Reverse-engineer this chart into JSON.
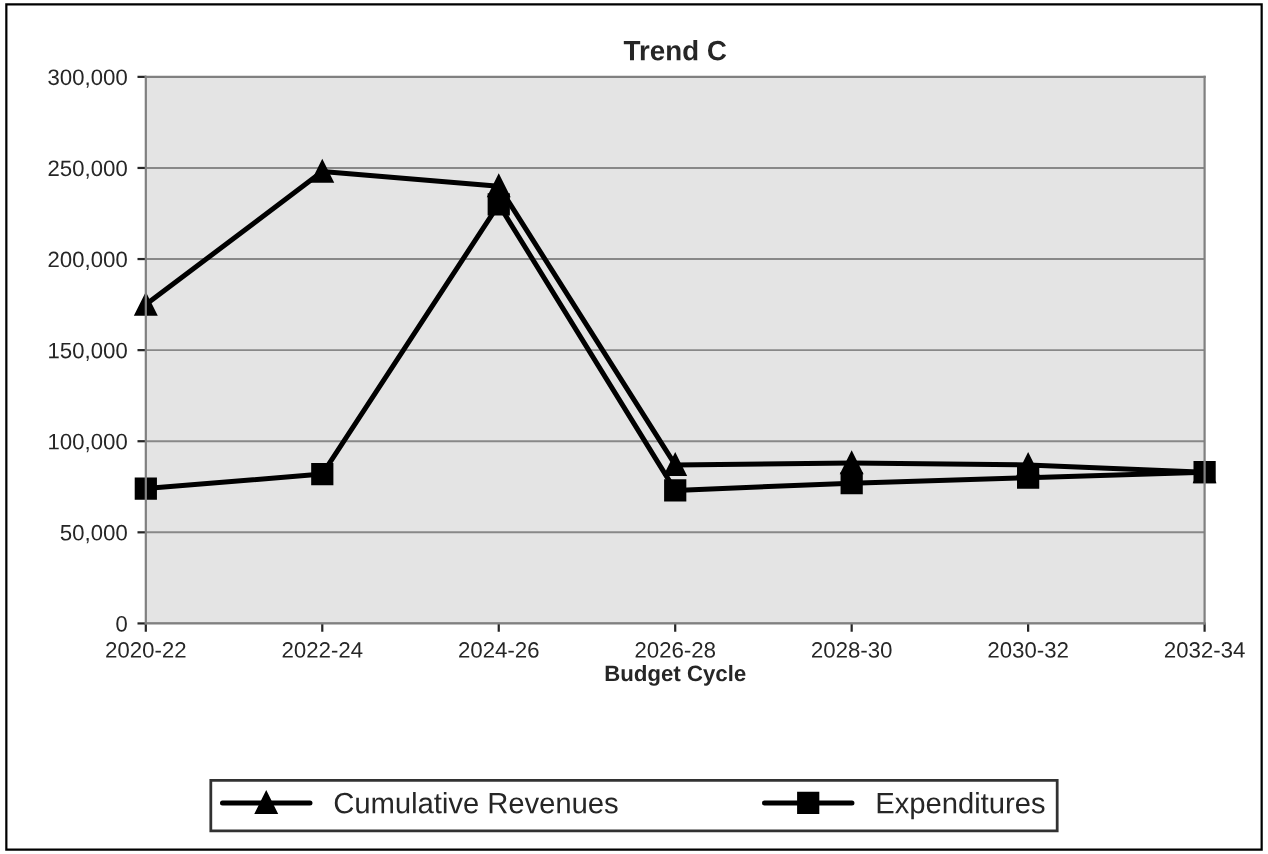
{
  "chart_data": {
    "type": "line",
    "title": "Trend C",
    "xlabel": "Budget Cycle",
    "categories": [
      "2020-22",
      "2022-24",
      "2024-26",
      "2026-28",
      "2028-30",
      "2030-32",
      "2032-34"
    ],
    "series": [
      {
        "name": "Cumulative Revenues",
        "color": "#000000",
        "marker": "triangle",
        "values": [
          175000,
          248000,
          240000,
          87000,
          88000,
          87000,
          83000
        ]
      },
      {
        "name": "Expenditures",
        "color": "#000000",
        "marker": "square",
        "values": [
          74000,
          82000,
          230000,
          73000,
          77000,
          80000,
          83000
        ]
      }
    ],
    "ylim": [
      0,
      300000
    ],
    "yticks": [
      {
        "value": 0,
        "label": "0"
      },
      {
        "value": 50000,
        "label": "50,000"
      },
      {
        "value": 100000,
        "label": "100,000"
      },
      {
        "value": 150000,
        "label": "150,000"
      },
      {
        "value": 200000,
        "label": "200,000"
      },
      {
        "value": 250000,
        "label": "250,000"
      },
      {
        "value": 300000,
        "label": "300,000"
      }
    ],
    "grid": "y",
    "legend": "bottom",
    "line_style": "solid"
  }
}
